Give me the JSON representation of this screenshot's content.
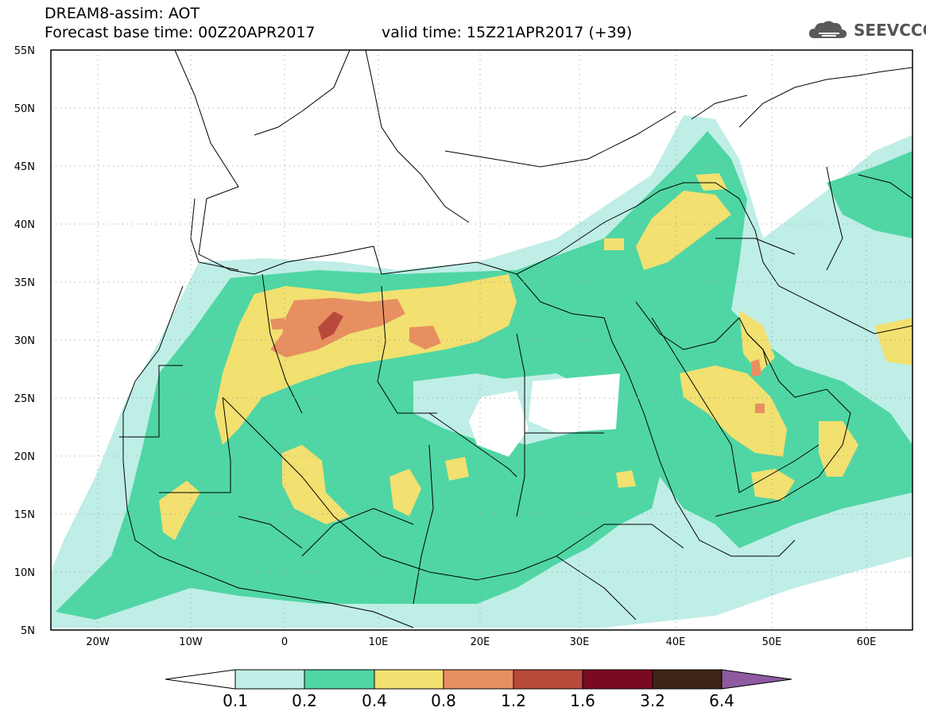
{
  "header": {
    "title": "DREAM8-assim: AOT",
    "base_time": "Forecast base time: 00Z20APR2017",
    "valid_time": "valid time: 15Z21APR2017 (+39)",
    "logo_text": "SEEVCCC"
  },
  "map": {
    "lon_range": [
      -25,
      65
    ],
    "lat_range": [
      5,
      55
    ],
    "lat_labels": [
      "55N",
      "50N",
      "45N",
      "40N",
      "35N",
      "30N",
      "25N",
      "20N",
      "15N",
      "10N",
      "5N"
    ],
    "lon_labels": [
      "20W",
      "10W",
      "0",
      "10E",
      "20E",
      "30E",
      "40E",
      "50E",
      "60E"
    ]
  },
  "colorbar": {
    "labels": [
      "0.1",
      "0.2",
      "0.4",
      "0.8",
      "1.2",
      "1.6",
      "3.2",
      "6.4"
    ],
    "colors": [
      "#ffffff",
      "#bfeee6",
      "#4fd6a4",
      "#f2e070",
      "#e88f62",
      "#b84a3c",
      "#7a0a22",
      "#3e2414",
      "#8e5aa0"
    ]
  },
  "colors": {
    "level1": "#bfeee6",
    "level2": "#4fd6a4",
    "level3": "#f2e070",
    "level4": "#e88f62",
    "level5": "#b84a3c",
    "border": "#000000"
  }
}
